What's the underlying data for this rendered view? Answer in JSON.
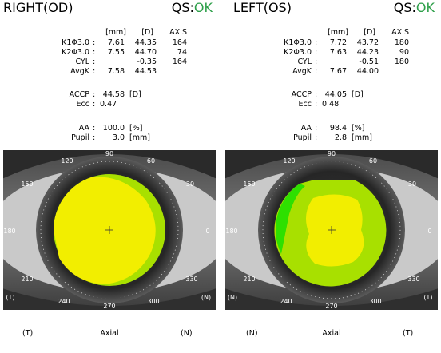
{
  "right": {
    "title": "RIGHT(OD)",
    "qs_label": "QS:",
    "qs_status": "OK",
    "units": {
      "mm": "[mm]",
      "d": "[D]",
      "axis": "AXIS"
    },
    "rows": [
      {
        "label": "K1Φ3.0",
        "mm": "7.61",
        "d": "44.35",
        "axis": "164"
      },
      {
        "label": "K2Φ3.0",
        "mm": "7.55",
        "d": "44.70",
        "axis": "74"
      },
      {
        "label": "CYL",
        "mm": "",
        "d": "-0.35",
        "axis": "164"
      },
      {
        "label": "AvgK",
        "mm": "7.58",
        "d": "44.53",
        "axis": ""
      }
    ],
    "accp_label": "ACCP",
    "accp_value": "44.58",
    "accp_unit": "[D]",
    "ecc_label": "Ecc",
    "ecc_value": "0.47",
    "aa_label": "AA",
    "aa_value": "100.0",
    "aa_unit": "[%]",
    "pupil_label": "Pupil",
    "pupil_value": "3.0",
    "pupil_unit": "[mm]",
    "degrees": [
      "90",
      "120",
      "150",
      "180",
      "210",
      "240",
      "270",
      "300",
      "330",
      "0",
      "30",
      "60"
    ],
    "nasal_left_mark": "(T)",
    "nasal_right_mark": "(N)",
    "footer": {
      "left": "(T)",
      "center": "Axial",
      "right": "(N)"
    }
  },
  "left": {
    "title": "LEFT(OS)",
    "qs_label": "QS:",
    "qs_status": "OK",
    "units": {
      "mm": "[mm]",
      "d": "[D]",
      "axis": "AXIS"
    },
    "rows": [
      {
        "label": "K1Φ3.0",
        "mm": "7.72",
        "d": "43.72",
        "axis": "180"
      },
      {
        "label": "K2Φ3.0",
        "mm": "7.63",
        "d": "44.23",
        "axis": "90"
      },
      {
        "label": "CYL",
        "mm": "",
        "d": "-0.51",
        "axis": "180"
      },
      {
        "label": "AvgK",
        "mm": "7.67",
        "d": "44.00",
        "axis": ""
      }
    ],
    "accp_label": "ACCP",
    "accp_value": "44.05",
    "accp_unit": "[D]",
    "ecc_label": "Ecc",
    "ecc_value": "0.48",
    "aa_label": "AA",
    "aa_value": "98.4",
    "aa_unit": "[%]",
    "pupil_label": "Pupil",
    "pupil_value": "2.8",
    "pupil_unit": "[mm]",
    "degrees": [
      "90",
      "120",
      "150",
      "180",
      "210",
      "240",
      "270",
      "300",
      "330",
      "0",
      "30",
      "60"
    ],
    "nasal_left_mark": "(N)",
    "nasal_right_mark": "(T)",
    "footer": {
      "left": "(N)",
      "center": "Axial",
      "right": "(T)"
    }
  },
  "colors": {
    "ok": "#2ea04a",
    "map_yellow": "#f2ee00",
    "map_lime": "#a8e000",
    "map_green": "#2ee000"
  }
}
